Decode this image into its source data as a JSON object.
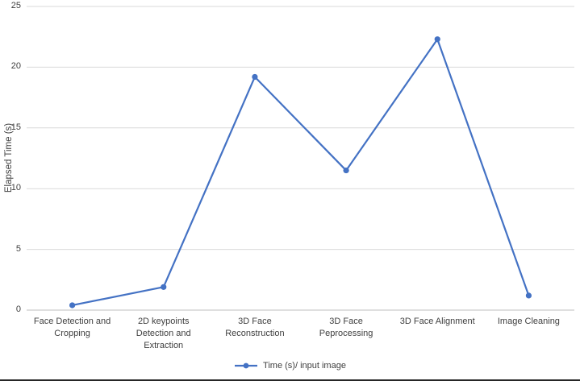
{
  "chart_data": {
    "type": "line",
    "title": "",
    "xlabel": "",
    "ylabel": "Elapsed Time (s)",
    "categories": [
      "Face Detection and Cropping",
      "2D keypoints Detection and Extraction",
      "3D Face Reconstruction",
      "3D Face Peprocessing",
      "3D Face Alignment",
      "Image Cleaning"
    ],
    "values": [
      0.4,
      1.9,
      19.2,
      11.5,
      22.3,
      1.2
    ],
    "ylim": [
      0,
      25
    ],
    "yticks": [
      0,
      5,
      10,
      15,
      20,
      25
    ],
    "grid": "horizontal",
    "legend": "Time (s)/ input image",
    "legend_position": "bottom-center",
    "colors": {
      "line": "#4472C4",
      "grid": "#D9D9D9",
      "axis": "#BFBFBF",
      "text": "#404040"
    }
  }
}
